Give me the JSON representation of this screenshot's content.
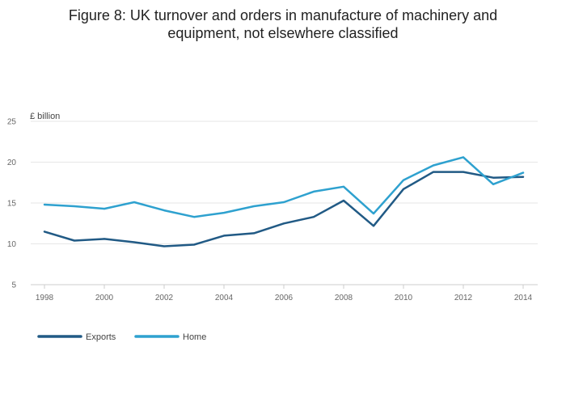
{
  "chart_data": {
    "type": "line",
    "title_lines": [
      "Figure 8: UK turnover and orders in manufacture of machinery and",
      "equipment, not elsewhere classified"
    ],
    "ylabel": "£ billion",
    "xlabel": "",
    "x": [
      1998,
      1999,
      2000,
      2001,
      2002,
      2003,
      2004,
      2005,
      2006,
      2007,
      2008,
      2009,
      2010,
      2011,
      2012,
      2013,
      2014
    ],
    "x_ticks": [
      1998,
      2000,
      2002,
      2004,
      2006,
      2008,
      2010,
      2012,
      2014
    ],
    "y_ticks": [
      5,
      10,
      15,
      20,
      25
    ],
    "ylim": [
      5,
      25
    ],
    "xlim": [
      1998,
      2014
    ],
    "grid": "horizontal",
    "legend_position": "bottom-left",
    "series": [
      {
        "name": "Exports",
        "color": "#215a85",
        "values": [
          11.5,
          10.4,
          10.6,
          10.2,
          9.7,
          9.9,
          11.0,
          11.3,
          12.5,
          13.3,
          15.3,
          12.2,
          16.7,
          18.8,
          18.8,
          18.1,
          18.2
        ]
      },
      {
        "name": "Home",
        "color": "#2ea1cf",
        "values": [
          14.8,
          14.6,
          14.3,
          15.1,
          14.1,
          13.3,
          13.8,
          14.6,
          15.1,
          16.4,
          17.0,
          13.7,
          17.8,
          19.6,
          20.6,
          17.3,
          18.7
        ]
      }
    ]
  }
}
